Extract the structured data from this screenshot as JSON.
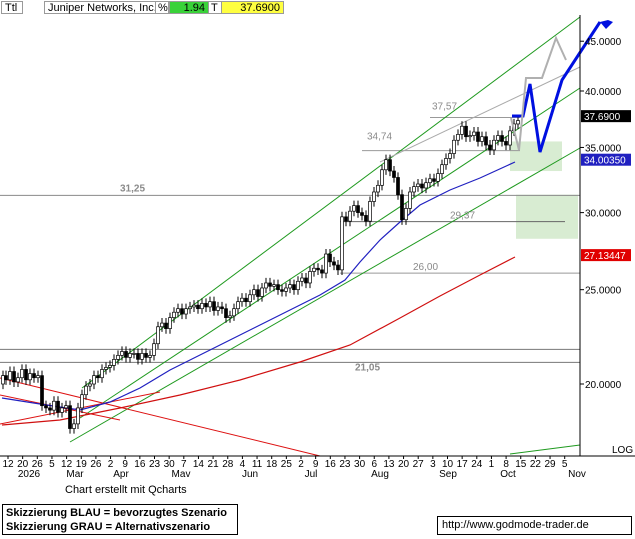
{
  "header": {
    "ttl": "Ttl",
    "name": "Juniper Networks, Inc.",
    "pct_label": "%",
    "pct_value": "1.94",
    "t_label": "T",
    "price": "37.6900",
    "colors": {
      "pct_bg": "#39d239",
      "price_bg": "#ffff40"
    }
  },
  "chart_data": {
    "type": "candlestick",
    "xlabel": "",
    "ylabel": "",
    "y_scale": "log",
    "ylim": [
      17.6,
      53.5
    ],
    "y_ticks": [
      {
        "value": 20,
        "label": "20.0000"
      },
      {
        "value": 25,
        "label": "25.0000"
      },
      {
        "value": 30,
        "label": "30.0000"
      },
      {
        "value": 35,
        "label": "35.0000"
      },
      {
        "value": 40,
        "label": "40.0000"
      },
      {
        "value": 45,
        "label": "45.0000"
      }
    ],
    "x_tick_labels": [
      "12",
      "20",
      "26",
      "5",
      "12",
      "19",
      "26",
      "2",
      "9",
      "16",
      "23",
      "30",
      "7",
      "14",
      "21",
      "28",
      "4",
      "11",
      "18",
      "25",
      "2",
      "9",
      "16",
      "23",
      "30",
      "6",
      "13",
      "20",
      "27",
      "3",
      "10",
      "17",
      "24",
      "1",
      "8",
      "15",
      "22",
      "29",
      "5"
    ],
    "month_labels": [
      "2026",
      "Mar",
      "Apr",
      "Mav",
      "Jun",
      "Jul",
      "Aug",
      "Sep",
      "Oct",
      "Nov"
    ],
    "price_path": [
      [
        0,
        20.0
      ],
      [
        3,
        20.4
      ],
      [
        6,
        20.2
      ],
      [
        10,
        20.6
      ],
      [
        14,
        20.1
      ],
      [
        18,
        20.3
      ],
      [
        22,
        20.7
      ],
      [
        26,
        20.2
      ],
      [
        30,
        20.5
      ],
      [
        34,
        20.3
      ],
      [
        38,
        20.4
      ],
      [
        42,
        19.0
      ],
      [
        46,
        18.9
      ],
      [
        50,
        18.8
      ],
      [
        54,
        19.2
      ],
      [
        58,
        18.7
      ],
      [
        62,
        18.9
      ],
      [
        66,
        19.0
      ],
      [
        70,
        18.0
      ],
      [
        74,
        18.2
      ],
      [
        78,
        18.9
      ],
      [
        82,
        19.5
      ],
      [
        86,
        19.9
      ],
      [
        90,
        20.0
      ],
      [
        94,
        20.4
      ],
      [
        98,
        20.3
      ],
      [
        102,
        20.7
      ],
      [
        106,
        20.8
      ],
      [
        110,
        20.9
      ],
      [
        114,
        21.2
      ],
      [
        118,
        21.4
      ],
      [
        122,
        21.6
      ],
      [
        126,
        21.3
      ],
      [
        130,
        21.5
      ],
      [
        134,
        21.5
      ],
      [
        138,
        21.2
      ],
      [
        142,
        21.5
      ],
      [
        146,
        21.3
      ],
      [
        150,
        21.4
      ],
      [
        154,
        22.0
      ],
      [
        158,
        22.9
      ],
      [
        162,
        23.1
      ],
      [
        166,
        22.8
      ],
      [
        170,
        23.4
      ],
      [
        174,
        23.7
      ],
      [
        178,
        23.9
      ],
      [
        182,
        23.6
      ],
      [
        186,
        23.9
      ],
      [
        190,
        24.0
      ],
      [
        194,
        24.1
      ],
      [
        198,
        23.9
      ],
      [
        202,
        24.2
      ],
      [
        206,
        24.0
      ],
      [
        210,
        24.3
      ],
      [
        214,
        23.8
      ],
      [
        218,
        24.0
      ],
      [
        222,
        23.9
      ],
      [
        226,
        23.4
      ],
      [
        230,
        23.5
      ],
      [
        234,
        23.9
      ],
      [
        238,
        24.3
      ],
      [
        242,
        24.5
      ],
      [
        246,
        24.3
      ],
      [
        250,
        24.7
      ],
      [
        254,
        25.0
      ],
      [
        258,
        24.6
      ],
      [
        262,
        25.1
      ],
      [
        266,
        25.4
      ],
      [
        270,
        25.2
      ],
      [
        274,
        25.3
      ],
      [
        278,
        25.0
      ],
      [
        282,
        24.9
      ],
      [
        286,
        25.1
      ],
      [
        290,
        25.3
      ],
      [
        294,
        25.0
      ],
      [
        298,
        25.5
      ],
      [
        302,
        25.7
      ],
      [
        306,
        25.4
      ],
      [
        310,
        26.1
      ],
      [
        314,
        26.3
      ],
      [
        318,
        26.2
      ],
      [
        322,
        26.0
      ],
      [
        326,
        27.2
      ],
      [
        330,
        26.7
      ],
      [
        334,
        26.5
      ],
      [
        338,
        26.2
      ],
      [
        342,
        29.7
      ],
      [
        346,
        29.4
      ],
      [
        350,
        30.1
      ],
      [
        354,
        30.5
      ],
      [
        358,
        30.0
      ],
      [
        362,
        29.8
      ],
      [
        366,
        29.4
      ],
      [
        370,
        30.8
      ],
      [
        374,
        31.5
      ],
      [
        378,
        32.0
      ],
      [
        382,
        33.2
      ],
      [
        386,
        34.0
      ],
      [
        390,
        33.1
      ],
      [
        394,
        32.6
      ],
      [
        398,
        31.3
      ],
      [
        402,
        29.5
      ],
      [
        406,
        30.3
      ],
      [
        410,
        31.5
      ],
      [
        414,
        31.9
      ],
      [
        418,
        32.1
      ],
      [
        422,
        31.8
      ],
      [
        426,
        32.2
      ],
      [
        430,
        32.5
      ],
      [
        434,
        32.3
      ],
      [
        438,
        32.9
      ],
      [
        442,
        33.6
      ],
      [
        446,
        34.1
      ],
      [
        450,
        34.5
      ],
      [
        454,
        35.6
      ],
      [
        458,
        36.1
      ],
      [
        462,
        36.8
      ],
      [
        466,
        35.9
      ],
      [
        470,
        36.0
      ],
      [
        474,
        36.3
      ],
      [
        478,
        35.5
      ],
      [
        482,
        35.9
      ],
      [
        486,
        35.2
      ],
      [
        490,
        34.8
      ],
      [
        494,
        35.6
      ],
      [
        498,
        36.0
      ],
      [
        502,
        35.5
      ],
      [
        506,
        35.2
      ],
      [
        510,
        36.4
      ],
      [
        514,
        37.0
      ],
      [
        518,
        37.3
      ]
    ],
    "moving_averages": [
      {
        "color": "#2020c0",
        "last_value": "34.00350"
      },
      {
        "color": "#d01010",
        "last_value": "27.13447"
      }
    ],
    "horizontal_levels": [
      {
        "value": 31.25,
        "label": "31,25"
      },
      {
        "value": 21.05,
        "label": "21,05"
      },
      {
        "value": 26.0,
        "label": "26,00"
      },
      {
        "value": 29.37,
        "label": "29,37"
      },
      {
        "value": 34.74,
        "label": "34,74"
      },
      {
        "value": 37.57,
        "label": "37,57"
      }
    ],
    "price_label": {
      "value": 37.69,
      "text": "37.6900"
    },
    "grid": false,
    "legend": "none"
  },
  "footer": {
    "credit": "Chart erstellt mit Qcharts",
    "line1": "Skizzierung BLAU = bevorzugtes Szenario",
    "line2": "Skizzierung GRAU = Alternativszenario",
    "url": "http://www.godmode-trader.de",
    "log": "LOG"
  }
}
